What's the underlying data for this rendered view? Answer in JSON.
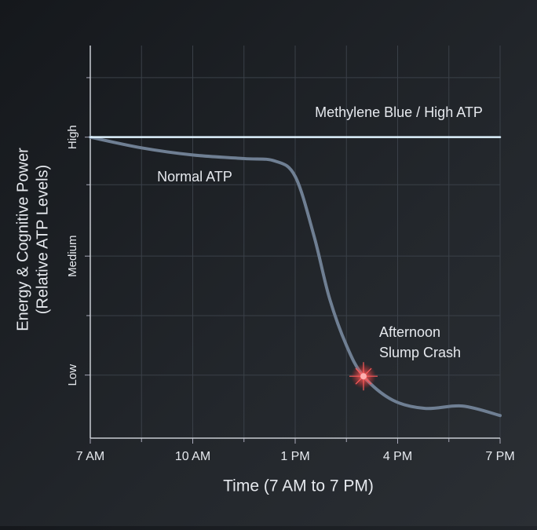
{
  "chart_data": {
    "type": "line",
    "xlabel": "Time (7 AM to 7 PM)",
    "ylabel": [
      "Energy & Cognitive Power",
      "(Relative ATP Levels)"
    ],
    "xlim": [
      7,
      19
    ],
    "xticks": [
      {
        "value": 7,
        "label": "7 AM"
      },
      {
        "value": 10,
        "label": "10 AM"
      },
      {
        "value": 13,
        "label": "1 PM"
      },
      {
        "value": 16,
        "label": "4 PM"
      },
      {
        "value": 19,
        "label": "7 PM"
      }
    ],
    "x_minor_ticks": [
      8.5,
      11.5,
      14.5,
      17.5
    ],
    "ylim": [
      0.47,
      3.77
    ],
    "yticks": [
      {
        "value": 1,
        "label": "Low"
      },
      {
        "value": 2,
        "label": "Medium"
      },
      {
        "value": 3,
        "label": "High"
      }
    ],
    "y_minor_ticks": [
      1.5,
      2.6,
      3.5
    ],
    "grid": true,
    "series": [
      {
        "name": "Methylene Blue / High ATP",
        "color": "#2fa8ff",
        "x": [
          7,
          19
        ],
        "values": [
          3,
          3
        ]
      },
      {
        "name": "Normal ATP",
        "color": "#6f7f93",
        "x": [
          7,
          8.5,
          10,
          11.5,
          12.4,
          13,
          13.55,
          14,
          14.5,
          15,
          15.85,
          16.8,
          17.9,
          19
        ],
        "values": [
          3,
          2.91,
          2.85,
          2.82,
          2.8,
          2.67,
          2.17,
          1.65,
          1.25,
          0.99,
          0.79,
          0.72,
          0.74,
          0.66
        ]
      }
    ],
    "annotation": {
      "lines": [
        "Afternoon",
        "Slump Crash"
      ],
      "x": 15,
      "y": 0.99
    }
  }
}
